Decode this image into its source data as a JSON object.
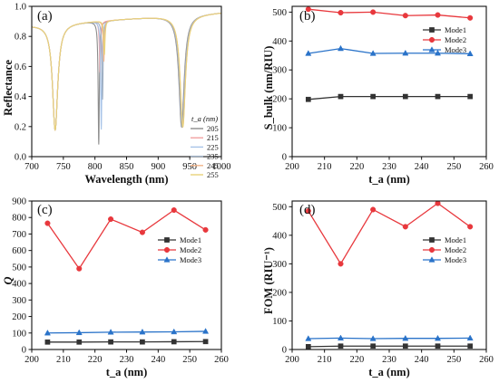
{
  "chart_data": [
    {
      "panel": "(a)",
      "type": "line",
      "xlabel": "Wavelength (nm)",
      "ylabel": "Reflectance",
      "xlim": [
        700,
        1000
      ],
      "ylim": [
        0.0,
        1.0
      ],
      "xticks": [
        700,
        750,
        800,
        850,
        900,
        950,
        1000
      ],
      "yticks": [
        0.0,
        0.2,
        0.4,
        0.6,
        0.8,
        1.0
      ],
      "xtick_labels": [
        "700",
        "750",
        "800",
        "850",
        "900",
        "950",
        "1000"
      ],
      "ytick_labels": [
        "0.0",
        "0.2",
        "0.4",
        "0.6",
        "0.8",
        "1.0"
      ],
      "legend_title": "t_a (nm)",
      "legend_position": "lower-right",
      "series": [
        {
          "name": "205",
          "color": "#8c8c8c",
          "dips": [
            {
              "x": 737,
              "depth": 0.2,
              "w": 5
            },
            {
              "x": 806,
              "depth": 0.09,
              "w": 1.1
            },
            {
              "x": 937,
              "depth": 0.21,
              "w": 5
            }
          ]
        },
        {
          "name": "215",
          "color": "#f0a0a0",
          "dips": [
            {
              "x": 737,
              "depth": 0.2,
              "w": 5
            },
            {
              "x": 808,
              "depth": 0.62,
              "w": 1.1
            },
            {
              "x": 938,
              "depth": 0.21,
              "w": 5
            }
          ]
        },
        {
          "name": "225",
          "color": "#a8c4e8",
          "dips": [
            {
              "x": 737,
              "depth": 0.2,
              "w": 5
            },
            {
              "x": 810,
              "depth": 0.2,
              "w": 1.1
            },
            {
              "x": 938,
              "depth": 0.21,
              "w": 5
            }
          ]
        },
        {
          "name": "235",
          "color": "#9fb0c4",
          "dips": [
            {
              "x": 737,
              "depth": 0.2,
              "w": 5
            },
            {
              "x": 812,
              "depth": 0.42,
              "w": 1.1
            },
            {
              "x": 938,
              "depth": 0.21,
              "w": 5
            }
          ]
        },
        {
          "name": "245",
          "color": "#f2b48a",
          "dips": [
            {
              "x": 737,
              "depth": 0.2,
              "w": 5
            },
            {
              "x": 814,
              "depth": 0.7,
              "w": 1.1
            },
            {
              "x": 939,
              "depth": 0.21,
              "w": 5
            }
          ]
        },
        {
          "name": "255",
          "color": "#e8d27a",
          "dips": [
            {
              "x": 737,
              "depth": 0.2,
              "w": 5
            },
            {
              "x": 815,
              "depth": 0.75,
              "w": 1.1
            },
            {
              "x": 939,
              "depth": 0.21,
              "w": 5
            }
          ]
        }
      ]
    },
    {
      "panel": "(b)",
      "type": "line",
      "xlabel": "t_a (nm)",
      "ylabel": "S_bulk (nm/RIU)",
      "xlim": [
        200,
        260
      ],
      "ylim": [
        0,
        520
      ],
      "xticks": [
        200,
        210,
        220,
        230,
        240,
        250,
        260
      ],
      "yticks": [
        0,
        100,
        200,
        300,
        400,
        500
      ],
      "xtick_labels": [
        "200",
        "210",
        "220",
        "230",
        "240",
        "250",
        "260"
      ],
      "ytick_labels": [
        "0",
        "100",
        "200",
        "300",
        "400",
        "500"
      ],
      "legend_position": "right",
      "x": [
        205,
        215,
        225,
        235,
        245,
        255
      ],
      "series": [
        {
          "name": "Mode1",
          "color": "#333333",
          "marker": "square",
          "values": [
            198,
            208,
            208,
            208,
            208,
            208
          ]
        },
        {
          "name": "Mode2",
          "color": "#e8383d",
          "marker": "circle",
          "values": [
            510,
            498,
            500,
            488,
            490,
            480
          ]
        },
        {
          "name": "Mode3",
          "color": "#2a73c9",
          "marker": "triangle",
          "values": [
            357,
            374,
            357,
            358,
            358,
            356
          ]
        }
      ]
    },
    {
      "panel": "(c)",
      "type": "line",
      "xlabel": "t_a (nm)",
      "ylabel": "Q",
      "xlim": [
        200,
        260
      ],
      "ylim": [
        0,
        900
      ],
      "xticks": [
        200,
        210,
        220,
        230,
        240,
        250,
        260
      ],
      "yticks": [
        0,
        100,
        200,
        300,
        400,
        500,
        600,
        700,
        800,
        900
      ],
      "xtick_labels": [
        "200",
        "210",
        "220",
        "230",
        "240",
        "250",
        "260"
      ],
      "ytick_labels": [
        "0",
        "100",
        "200",
        "300",
        "400",
        "500",
        "600",
        "700",
        "800",
        "900"
      ],
      "legend_position": "right",
      "x": [
        205,
        215,
        225,
        235,
        245,
        255
      ],
      "series": [
        {
          "name": "Mode1",
          "color": "#333333",
          "marker": "square",
          "values": [
            45,
            45,
            46,
            46,
            47,
            48
          ]
        },
        {
          "name": "Mode2",
          "color": "#e8383d",
          "marker": "circle",
          "values": [
            765,
            490,
            790,
            710,
            845,
            725
          ]
        },
        {
          "name": "Mode3",
          "color": "#2a73c9",
          "marker": "triangle",
          "values": [
            100,
            102,
            105,
            106,
            107,
            110
          ]
        }
      ]
    },
    {
      "panel": "(d)",
      "type": "line",
      "xlabel": "t_a (nm)",
      "ylabel": "FOM (RIU⁻¹)",
      "xlim": [
        200,
        260
      ],
      "ylim": [
        0,
        520
      ],
      "xticks": [
        200,
        210,
        220,
        230,
        240,
        250,
        260
      ],
      "yticks": [
        0,
        100,
        200,
        300,
        400,
        500
      ],
      "xtick_labels": [
        "200",
        "210",
        "220",
        "230",
        "240",
        "250",
        "260"
      ],
      "ytick_labels": [
        "0",
        "100",
        "200",
        "300",
        "400",
        "500"
      ],
      "legend_position": "right",
      "x": [
        205,
        215,
        225,
        235,
        245,
        255
      ],
      "series": [
        {
          "name": "Mode1",
          "color": "#333333",
          "marker": "square",
          "values": [
            10,
            12,
            12,
            12,
            12,
            12
          ]
        },
        {
          "name": "Mode2",
          "color": "#e8383d",
          "marker": "circle",
          "values": [
            485,
            300,
            490,
            430,
            512,
            430
          ]
        },
        {
          "name": "Mode3",
          "color": "#2a73c9",
          "marker": "triangle",
          "values": [
            38,
            40,
            38,
            39,
            39,
            40
          ]
        }
      ]
    }
  ]
}
